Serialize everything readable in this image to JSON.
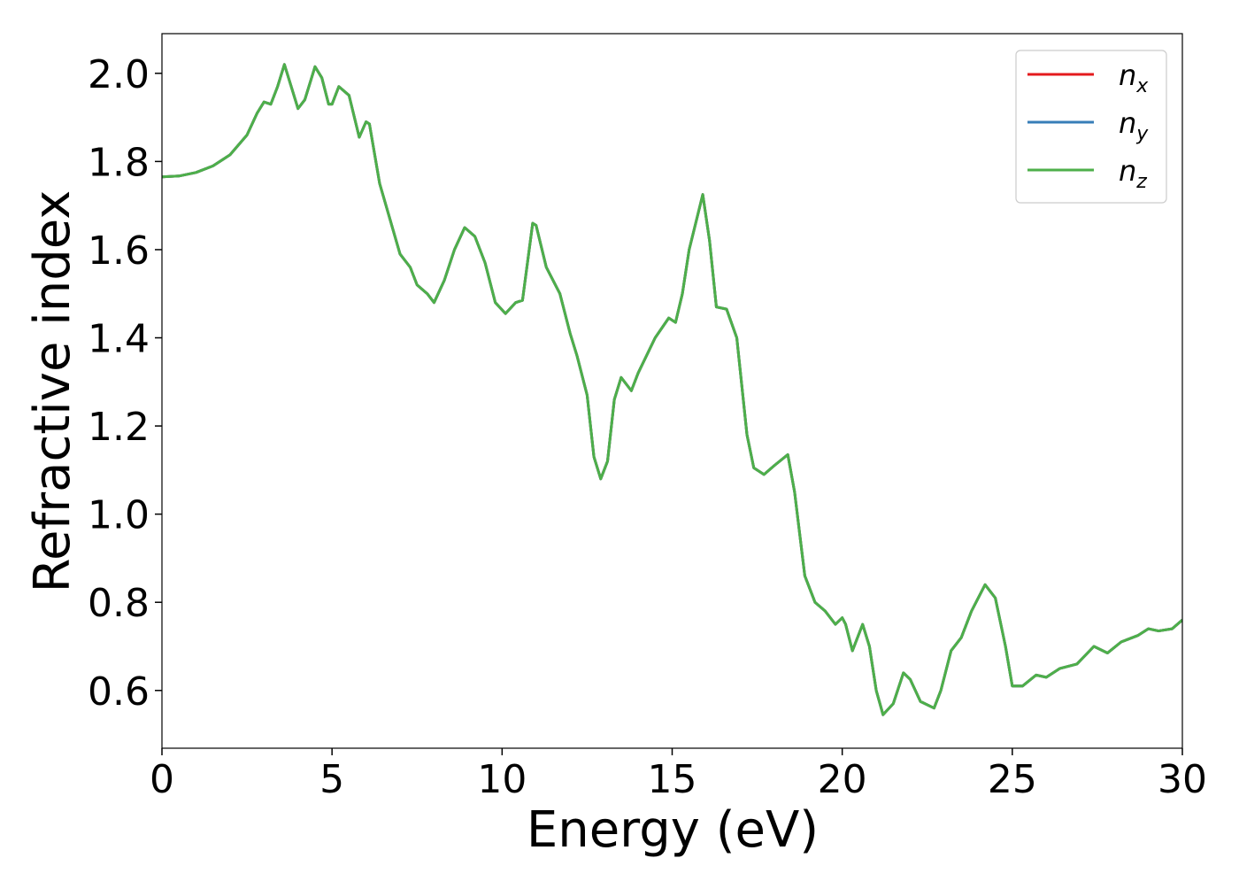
{
  "chart_data": {
    "type": "line",
    "xlabel": "Energy (eV)",
    "ylabel": "Refractive index",
    "x": [
      0,
      0.5,
      1,
      1.5,
      2,
      2.5,
      2.8,
      3,
      3.2,
      3.4,
      3.6,
      3.8,
      4,
      4.2,
      4.5,
      4.7,
      4.9,
      5,
      5.2,
      5.5,
      5.8,
      6,
      6.1,
      6.4,
      6.7,
      7,
      7.3,
      7.5,
      7.8,
      8,
      8.3,
      8.6,
      8.9,
      9.2,
      9.5,
      9.8,
      10.1,
      10.4,
      10.6,
      10.9,
      11,
      11.3,
      11.7,
      12,
      12.2,
      12.5,
      12.7,
      12.9,
      13.1,
      13.3,
      13.5,
      13.8,
      14,
      14.5,
      14.9,
      15.1,
      15.3,
      15.5,
      15.9,
      16.1,
      16.3,
      16.6,
      16.9,
      17.2,
      17.4,
      17.7,
      18,
      18.4,
      18.6,
      18.9,
      19.2,
      19.5,
      19.8,
      20,
      20.1,
      20.3,
      20.6,
      20.8,
      21,
      21.2,
      21.5,
      21.8,
      22,
      22.3,
      22.7,
      22.9,
      23.2,
      23.5,
      23.8,
      24.2,
      24.5,
      24.8,
      25,
      25.3,
      25.7,
      26,
      26.4,
      26.9,
      27.4,
      27.8,
      28.2,
      28.7,
      29,
      29.3,
      29.7,
      30
    ],
    "series": [
      {
        "name": "nx",
        "color": "#e41a1c",
        "values": [
          1.765,
          1.767,
          1.775,
          1.79,
          1.815,
          1.86,
          1.91,
          1.935,
          1.93,
          1.97,
          2.02,
          1.97,
          1.92,
          1.94,
          2.015,
          1.99,
          1.93,
          1.93,
          1.97,
          1.95,
          1.855,
          1.89,
          1.885,
          1.75,
          1.67,
          1.59,
          1.56,
          1.52,
          1.5,
          1.48,
          1.53,
          1.6,
          1.65,
          1.63,
          1.57,
          1.48,
          1.455,
          1.48,
          1.485,
          1.66,
          1.655,
          1.56,
          1.5,
          1.41,
          1.36,
          1.27,
          1.13,
          1.08,
          1.12,
          1.26,
          1.31,
          1.28,
          1.32,
          1.4,
          1.445,
          1.435,
          1.5,
          1.6,
          1.725,
          1.62,
          1.47,
          1.465,
          1.4,
          1.18,
          1.105,
          1.09,
          1.11,
          1.135,
          1.05,
          0.86,
          0.8,
          0.78,
          0.75,
          0.765,
          0.75,
          0.69,
          0.75,
          0.7,
          0.6,
          0.545,
          0.57,
          0.64,
          0.625,
          0.575,
          0.56,
          0.6,
          0.69,
          0.72,
          0.78,
          0.84,
          0.81,
          0.7,
          0.61,
          0.61,
          0.635,
          0.63,
          0.65,
          0.66,
          0.7,
          0.685,
          0.71,
          0.725,
          0.74,
          0.735,
          0.74,
          0.76
        ]
      },
      {
        "name": "ny",
        "color": "#377eb8",
        "values": [
          1.765,
          1.767,
          1.775,
          1.79,
          1.815,
          1.86,
          1.91,
          1.935,
          1.93,
          1.97,
          2.02,
          1.97,
          1.92,
          1.94,
          2.015,
          1.99,
          1.93,
          1.93,
          1.97,
          1.95,
          1.855,
          1.89,
          1.885,
          1.75,
          1.67,
          1.59,
          1.56,
          1.52,
          1.5,
          1.48,
          1.53,
          1.6,
          1.65,
          1.63,
          1.57,
          1.48,
          1.455,
          1.48,
          1.485,
          1.66,
          1.655,
          1.56,
          1.5,
          1.41,
          1.36,
          1.27,
          1.13,
          1.08,
          1.12,
          1.26,
          1.31,
          1.28,
          1.32,
          1.4,
          1.445,
          1.435,
          1.5,
          1.6,
          1.725,
          1.62,
          1.47,
          1.465,
          1.4,
          1.18,
          1.105,
          1.09,
          1.11,
          1.135,
          1.05,
          0.86,
          0.8,
          0.78,
          0.75,
          0.765,
          0.75,
          0.69,
          0.75,
          0.7,
          0.6,
          0.545,
          0.57,
          0.64,
          0.625,
          0.575,
          0.56,
          0.6,
          0.69,
          0.72,
          0.78,
          0.84,
          0.81,
          0.7,
          0.61,
          0.61,
          0.635,
          0.63,
          0.65,
          0.66,
          0.7,
          0.685,
          0.71,
          0.725,
          0.74,
          0.735,
          0.74,
          0.76
        ]
      },
      {
        "name": "nz",
        "color": "#4daf4a",
        "values": [
          1.765,
          1.767,
          1.775,
          1.79,
          1.815,
          1.86,
          1.91,
          1.935,
          1.93,
          1.97,
          2.02,
          1.97,
          1.92,
          1.94,
          2.015,
          1.99,
          1.93,
          1.93,
          1.97,
          1.95,
          1.855,
          1.89,
          1.885,
          1.75,
          1.67,
          1.59,
          1.56,
          1.52,
          1.5,
          1.48,
          1.53,
          1.6,
          1.65,
          1.63,
          1.57,
          1.48,
          1.455,
          1.48,
          1.485,
          1.66,
          1.655,
          1.56,
          1.5,
          1.41,
          1.36,
          1.27,
          1.13,
          1.08,
          1.12,
          1.26,
          1.31,
          1.28,
          1.32,
          1.4,
          1.445,
          1.435,
          1.5,
          1.6,
          1.725,
          1.62,
          1.47,
          1.465,
          1.4,
          1.18,
          1.105,
          1.09,
          1.11,
          1.135,
          1.05,
          0.86,
          0.8,
          0.78,
          0.75,
          0.765,
          0.75,
          0.69,
          0.75,
          0.7,
          0.6,
          0.545,
          0.57,
          0.64,
          0.625,
          0.575,
          0.56,
          0.6,
          0.69,
          0.72,
          0.78,
          0.84,
          0.81,
          0.7,
          0.61,
          0.61,
          0.635,
          0.63,
          0.65,
          0.66,
          0.7,
          0.685,
          0.71,
          0.725,
          0.74,
          0.735,
          0.74,
          0.76
        ]
      }
    ],
    "xlim": [
      0,
      30
    ],
    "xticks": [
      0,
      5,
      10,
      15,
      20,
      25,
      30
    ],
    "ylim": [
      0.469,
      2.09
    ],
    "yticks": [
      {
        "value": 0.6,
        "label": "0.6"
      },
      {
        "value": 0.8,
        "label": "0.8"
      },
      {
        "value": 1.0,
        "label": "1.0"
      },
      {
        "value": 1.2,
        "label": "1.2"
      },
      {
        "value": 1.4,
        "label": "1.4"
      },
      {
        "value": 1.6,
        "label": "1.6"
      },
      {
        "value": 1.8,
        "label": "1.8"
      },
      {
        "value": 2.0,
        "label": "2.0"
      }
    ],
    "legend": "upper right",
    "grid": false
  }
}
